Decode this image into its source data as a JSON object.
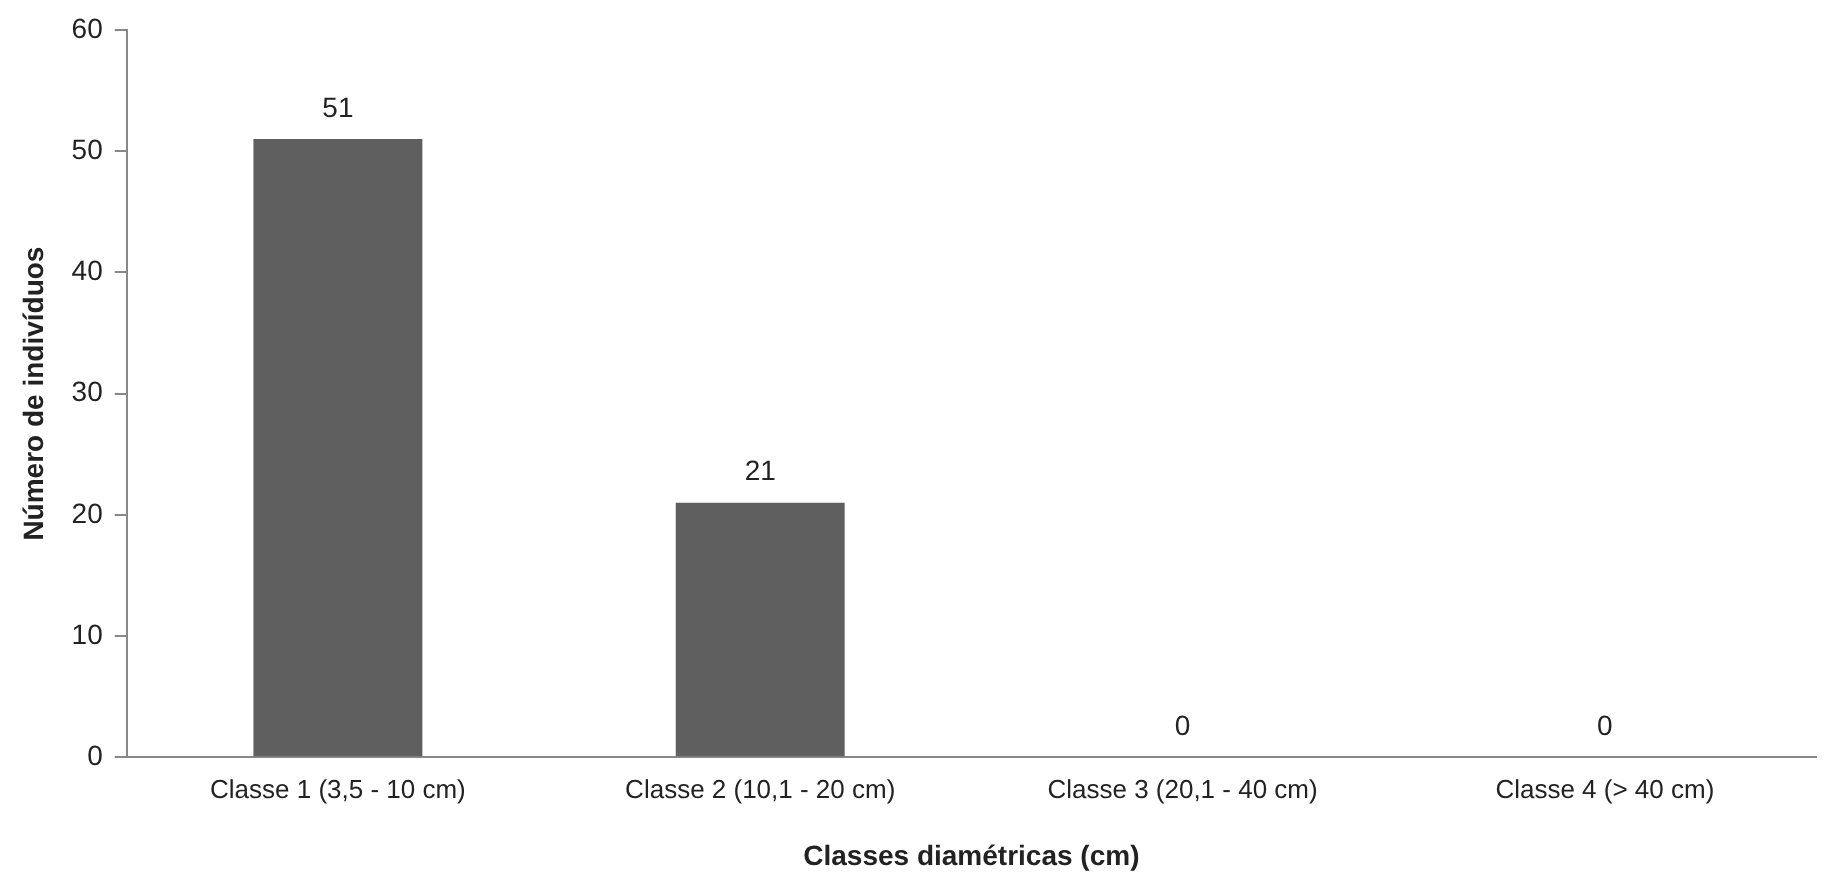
{
  "chart_data": {
    "type": "bar",
    "xlabel": "Classes diamétricas (cm)",
    "ylabel": "Número de indivíduos",
    "categories": [
      "Classe 1 (3,5 - 10 cm)",
      "Classe 2 (10,1 - 20 cm)",
      "Classe 3 (20,1 - 40 cm)",
      "Classe 4 (> 40 cm)"
    ],
    "values": [
      51,
      21,
      0,
      0
    ],
    "color": "#5f5f5f",
    "ylim": [
      0,
      60
    ],
    "yticks": [
      0,
      10,
      20,
      30,
      40,
      50,
      60
    ],
    "grid": false,
    "legend": false,
    "data_labels": true
  }
}
